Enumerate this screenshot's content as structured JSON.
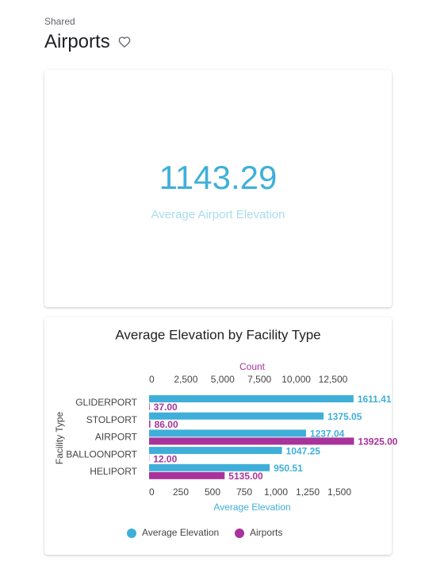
{
  "header": {
    "section": "Shared",
    "title": "Airports"
  },
  "scorecard": {
    "value": 1143.29,
    "label": "Average Airport Elevation"
  },
  "chart_data": {
    "type": "bar",
    "orientation": "horizontal",
    "title": "Average Elevation by Facility Type",
    "categories": [
      "GLIDERPORT",
      "STOLPORT",
      "AIRPORT",
      "BALLOONPORT",
      "HELIPORT"
    ],
    "series": [
      {
        "name": "Average Elevation",
        "color": "#3fafd9",
        "axis": "x",
        "values": [
          1611.41,
          1375.05,
          1237.04,
          1047.25,
          950.51
        ]
      },
      {
        "name": "Airports",
        "color": "#a8339b",
        "axis": "x2",
        "values": [
          37,
          86,
          13925,
          12,
          5135
        ],
        "value_labels": [
          "37.00",
          "86.00",
          "13925.00",
          "12.00",
          "5135.00"
        ]
      }
    ],
    "x_label": "Average Elevation",
    "x2_label": "Count",
    "y_label": "Facility Type",
    "xlim": [
      0,
      1650
    ],
    "xticks": [
      0,
      250,
      500,
      750,
      {
        "value": 1000,
        "label": "1,000"
      },
      {
        "value": 1250,
        "label": "1,250"
      },
      {
        "value": 1500,
        "label": "1,500"
      }
    ],
    "x2lim": [
      0,
      14225
    ],
    "x2ticks": [
      0,
      {
        "value": 2500,
        "label": "2,500"
      },
      {
        "value": 5000,
        "label": "5,000"
      },
      {
        "value": 7500,
        "label": "7,500"
      },
      {
        "value": 10000,
        "label": "10,000"
      },
      {
        "value": 12500,
        "label": "12,500"
      }
    ],
    "grid": false,
    "legend": "bottom"
  }
}
